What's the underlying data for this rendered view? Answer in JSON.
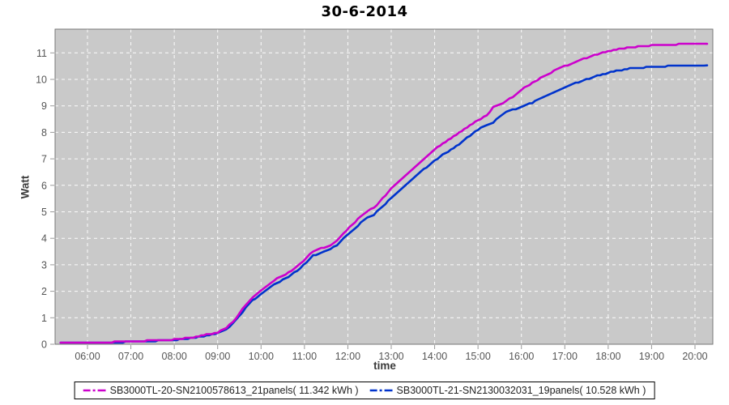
{
  "title": "30-6-2014",
  "chart_data": {
    "type": "line",
    "title": "30-6-2014",
    "xlabel": "time",
    "ylabel": "Watt",
    "x_tick_labels": [
      "06:00",
      "07:00",
      "08:00",
      "09:00",
      "10:00",
      "11:00",
      "12:00",
      "13:00",
      "14:00",
      "15:00",
      "16:00",
      "17:00",
      "18:00",
      "19:00",
      "20:00"
    ],
    "x_tick_hours": [
      6,
      7,
      8,
      9,
      10,
      11,
      12,
      13,
      14,
      15,
      16,
      17,
      18,
      19,
      20
    ],
    "y_ticks": [
      0,
      1,
      2,
      3,
      4,
      5,
      6,
      7,
      8,
      9,
      10,
      11
    ],
    "xlim_hours": [
      5.27,
      20.41
    ],
    "ylim": [
      0,
      11.9
    ],
    "grid": true,
    "legend_position": "bottom",
    "plot_bg_color": "#c9c9c9",
    "grid_color": "#ffffff",
    "x_hours": [
      5.38,
      6.0,
      6.5,
      7.0,
      7.5,
      8.0,
      8.5,
      8.8,
      9.0,
      9.2,
      9.35,
      9.5,
      9.65,
      9.8,
      10.0,
      10.15,
      10.3,
      10.5,
      10.7,
      10.9,
      11.05,
      11.2,
      11.45,
      11.6,
      11.75,
      11.9,
      12.1,
      12.3,
      12.45,
      12.6,
      12.8,
      13.0,
      13.25,
      13.5,
      13.75,
      14.0,
      14.25,
      14.5,
      14.75,
      15.0,
      15.2,
      15.35,
      15.5,
      15.65,
      15.8,
      16.0,
      16.25,
      16.5,
      16.75,
      17.0,
      17.25,
      17.5,
      17.75,
      18.0,
      18.25,
      18.5,
      18.75,
      19.0,
      19.25,
      19.5,
      19.75,
      20.0,
      20.28
    ],
    "series": [
      {
        "name": "SB3000TL-20-SN2100578613_21panels( 11.342 kWh )",
        "color": "#cc00cc",
        "final_kwh": 11.342,
        "values": [
          0.05,
          0.06,
          0.08,
          0.1,
          0.14,
          0.18,
          0.28,
          0.38,
          0.45,
          0.62,
          0.85,
          1.15,
          1.5,
          1.78,
          2.02,
          2.22,
          2.42,
          2.58,
          2.78,
          3.02,
          3.28,
          3.52,
          3.65,
          3.75,
          3.92,
          4.18,
          4.52,
          4.82,
          5.02,
          5.15,
          5.5,
          5.88,
          6.25,
          6.63,
          7.0,
          7.35,
          7.65,
          7.92,
          8.2,
          8.47,
          8.63,
          8.95,
          9.05,
          9.18,
          9.35,
          9.62,
          9.87,
          10.1,
          10.32,
          10.5,
          10.67,
          10.81,
          10.95,
          11.06,
          11.14,
          11.21,
          11.25,
          11.28,
          11.3,
          11.32,
          11.33,
          11.34,
          11.342
        ]
      },
      {
        "name": "SB3000TL-21-SN2130032031_19panels( 10.528 kWh )",
        "color": "#0033cc",
        "final_kwh": 10.528,
        "values": [
          0.04,
          0.05,
          0.07,
          0.09,
          0.12,
          0.16,
          0.25,
          0.34,
          0.41,
          0.56,
          0.78,
          1.05,
          1.38,
          1.65,
          1.88,
          2.07,
          2.27,
          2.43,
          2.62,
          2.86,
          3.1,
          3.35,
          3.48,
          3.58,
          3.75,
          4.0,
          4.3,
          4.58,
          4.78,
          4.9,
          5.2,
          5.52,
          5.9,
          6.27,
          6.6,
          6.94,
          7.22,
          7.47,
          7.8,
          8.1,
          8.28,
          8.38,
          8.6,
          8.78,
          8.85,
          8.94,
          9.12,
          9.32,
          9.52,
          9.7,
          9.86,
          10.0,
          10.13,
          10.25,
          10.34,
          10.41,
          10.44,
          10.47,
          10.49,
          10.51,
          10.52,
          10.525,
          10.528
        ]
      }
    ]
  }
}
